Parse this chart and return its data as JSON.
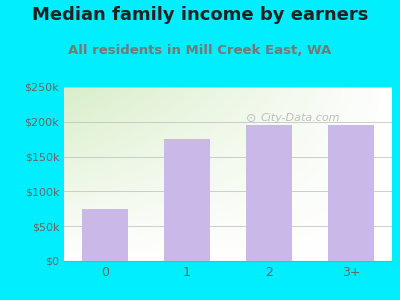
{
  "categories": [
    "0",
    "1",
    "2",
    "3+"
  ],
  "values": [
    75000,
    175000,
    195000,
    196000
  ],
  "bar_color": "#c9b8e8",
  "title": "Median family income by earners",
  "subtitle": "All residents in Mill Creek East, WA",
  "ylim": [
    0,
    250000
  ],
  "yticks": [
    0,
    50000,
    100000,
    150000,
    200000,
    250000
  ],
  "ytick_labels": [
    "$0",
    "$50k",
    "$100k",
    "$150k",
    "$200k",
    "$250k"
  ],
  "background_color": "#00eeff",
  "title_fontsize": 13,
  "subtitle_fontsize": 9.5,
  "title_color": "#222222",
  "subtitle_color": "#777777",
  "tick_color": "#666666",
  "watermark": "City-Data.com",
  "grad_top": "#ffffff",
  "grad_bottom": "#d8eec8"
}
